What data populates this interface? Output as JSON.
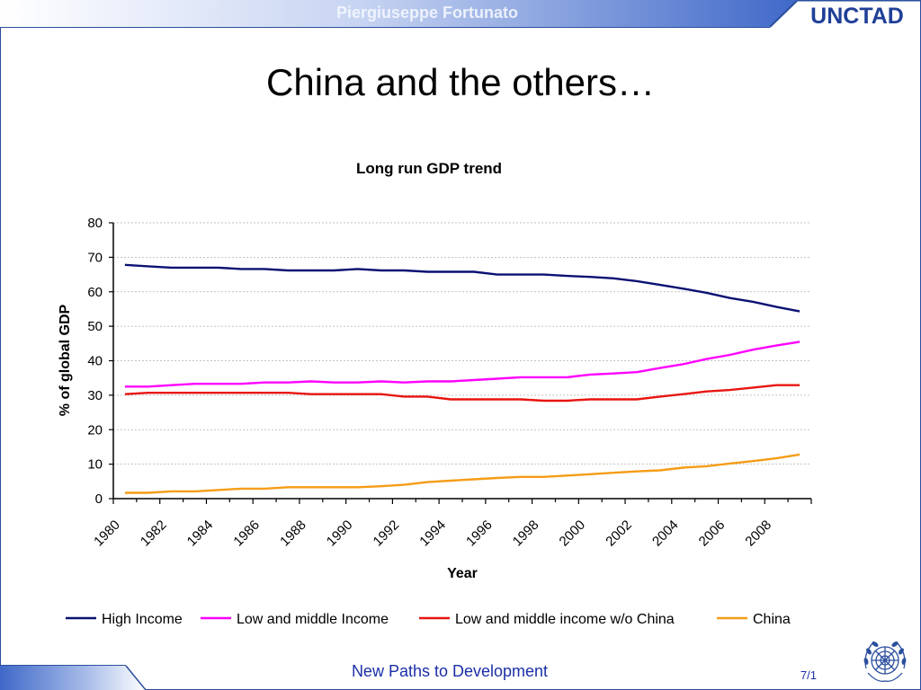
{
  "header": {
    "presenter": "Piergiuseppe Fortunato",
    "logo": "UNCTAD"
  },
  "slide": {
    "title": "China and the others…"
  },
  "footer": {
    "text": "New Paths to Development",
    "page": "7/1",
    "emblem": "un-emblem-icon"
  },
  "colors": {
    "frame": "#2b4f9e",
    "high_income": "#0a1172",
    "low_middle": "#ff00ff",
    "low_middle_wo_china": "#e8140f",
    "china": "#f59c16"
  },
  "chart_data": {
    "type": "line",
    "title": "Long run GDP trend",
    "xlabel": "Year",
    "ylabel": "% of global GDP",
    "ylim": [
      0,
      80
    ],
    "yticks": [
      0,
      10,
      20,
      30,
      40,
      50,
      60,
      70,
      80
    ],
    "xticks": [
      "1980",
      "1982",
      "1984",
      "1986",
      "1988",
      "1990",
      "1992",
      "1994",
      "1996",
      "1998",
      "2000",
      "2002",
      "2004",
      "2006",
      "2008"
    ],
    "x": [
      1980,
      1981,
      1982,
      1983,
      1984,
      1985,
      1986,
      1987,
      1988,
      1989,
      1990,
      1991,
      1992,
      1993,
      1994,
      1995,
      1996,
      1997,
      1998,
      1999,
      2000,
      2001,
      2002,
      2003,
      2004,
      2005,
      2006,
      2007,
      2008,
      2009
    ],
    "grid": true,
    "legend_position": "bottom",
    "series": [
      {
        "name": "High Income",
        "color": "#0a1172",
        "values": [
          67.8,
          67.4,
          67.0,
          67.0,
          67.0,
          66.6,
          66.6,
          66.2,
          66.2,
          66.2,
          66.6,
          66.2,
          66.2,
          65.8,
          65.8,
          65.8,
          65.0,
          65.0,
          65.0,
          64.6,
          64.3,
          63.9,
          63.1,
          62.0,
          60.9,
          59.7,
          58.2,
          57.1,
          55.6,
          54.3
        ]
      },
      {
        "name": "Low and middle Income",
        "color": "#ff00ff",
        "values": [
          32.5,
          32.5,
          32.9,
          33.3,
          33.3,
          33.3,
          33.7,
          33.7,
          34.0,
          33.7,
          33.7,
          34.0,
          33.7,
          34.0,
          34.0,
          34.4,
          34.8,
          35.2,
          35.2,
          35.2,
          36.0,
          36.3,
          36.7,
          37.9,
          39.0,
          40.5,
          41.7,
          43.2,
          44.4,
          45.5
        ]
      },
      {
        "name": "Low and middle income w/o China",
        "color": "#e8140f",
        "values": [
          30.3,
          30.7,
          30.7,
          30.7,
          30.7,
          30.7,
          30.7,
          30.7,
          30.3,
          30.3,
          30.3,
          30.3,
          29.6,
          29.6,
          28.8,
          28.8,
          28.8,
          28.8,
          28.4,
          28.4,
          28.8,
          28.8,
          28.8,
          29.6,
          30.3,
          31.1,
          31.5,
          32.2,
          32.9,
          32.9
        ]
      },
      {
        "name": "China",
        "color": "#f59c16",
        "values": [
          1.7,
          1.7,
          2.1,
          2.1,
          2.5,
          2.9,
          2.9,
          3.3,
          3.3,
          3.3,
          3.3,
          3.6,
          4.0,
          4.8,
          5.2,
          5.6,
          6.0,
          6.3,
          6.3,
          6.7,
          7.1,
          7.5,
          7.9,
          8.2,
          9.0,
          9.4,
          10.2,
          10.9,
          11.7,
          12.8
        ]
      }
    ]
  }
}
